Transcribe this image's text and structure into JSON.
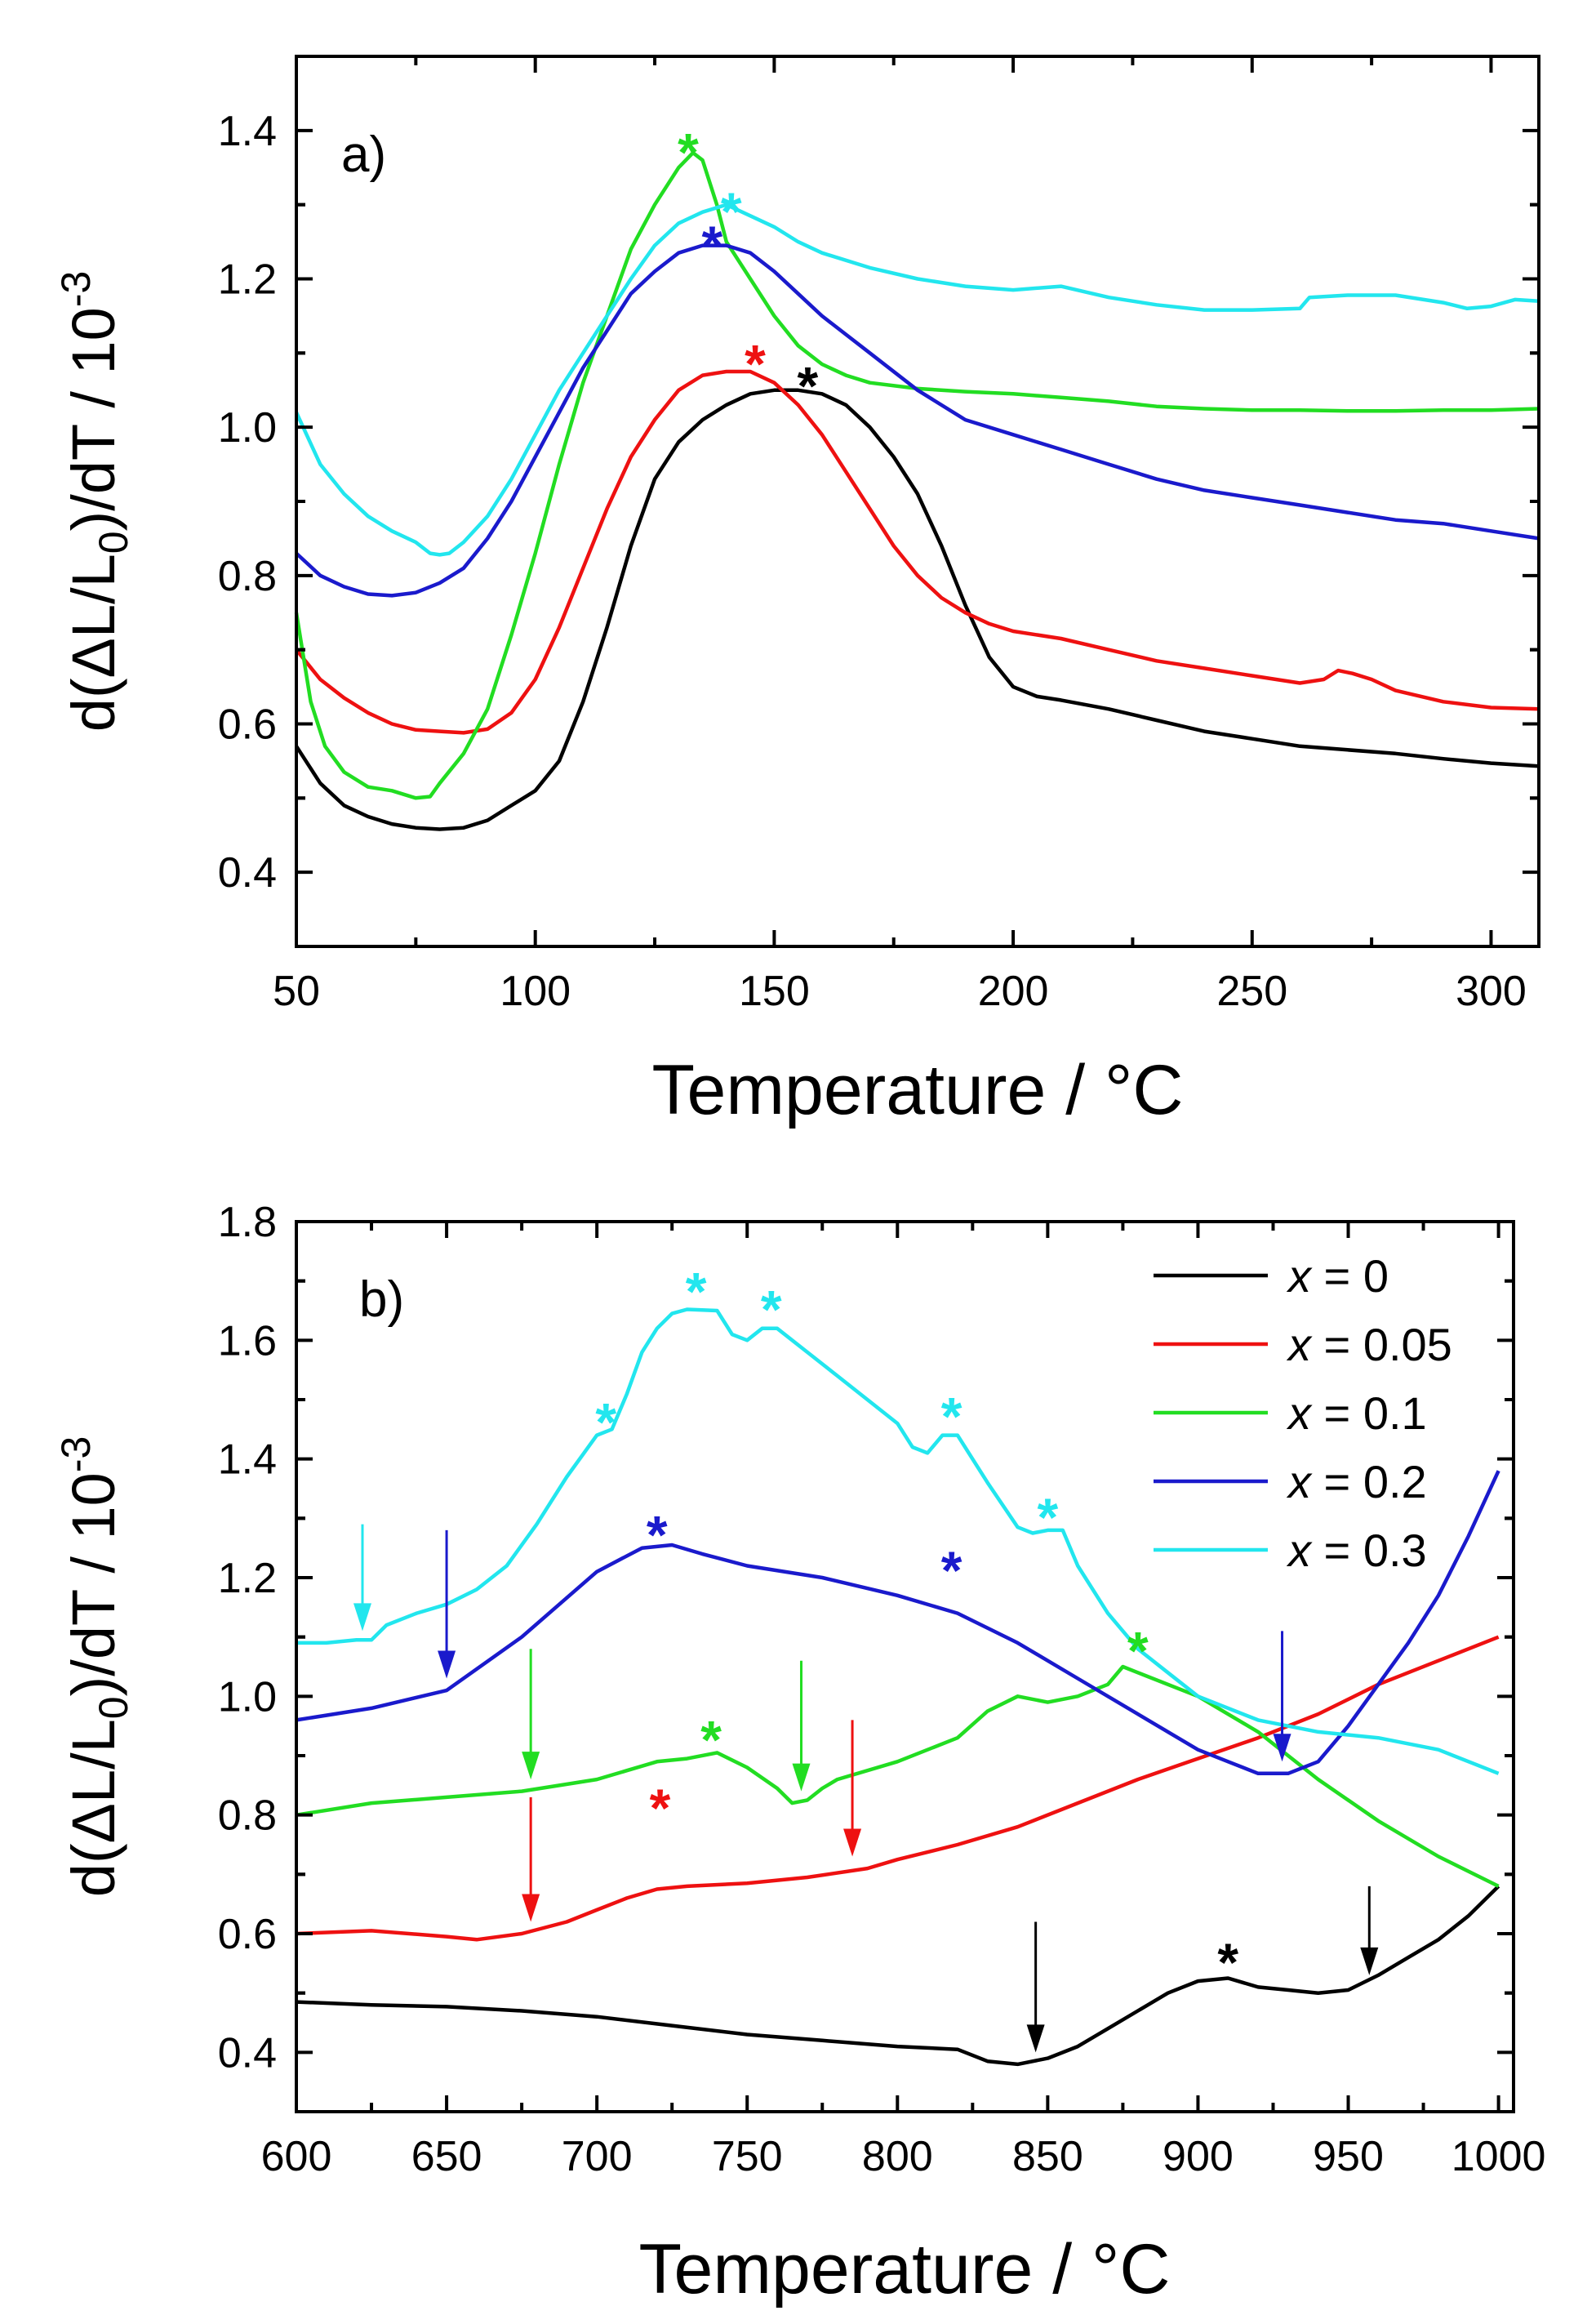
{
  "colors": {
    "x0": "#000000",
    "x005": "#ee1111",
    "x01": "#22dd22",
    "x02": "#1a1acc",
    "x03": "#22e6ee"
  },
  "legend": [
    {
      "key": "x0",
      "prefix": "x",
      "rest": " = 0"
    },
    {
      "key": "x005",
      "prefix": "x",
      "rest": " = 0.05"
    },
    {
      "key": "x01",
      "prefix": "x",
      "rest": " = 0.1"
    },
    {
      "key": "x02",
      "prefix": "x",
      "rest": " = 0.2"
    },
    {
      "key": "x03",
      "prefix": "x",
      "rest": " = 0.3"
    }
  ],
  "chart_data": [
    {
      "type": "line",
      "panel_label": "a)",
      "xlabel": "Temperature / °C",
      "ylabel": {
        "main": "d(ΔL/L",
        "sub": "0",
        "mid": ")/dT / 10",
        "sup": "-3"
      },
      "xlim": [
        50,
        310
      ],
      "ylim": [
        0.3,
        1.5
      ],
      "xticks": [
        50,
        100,
        150,
        200,
        250,
        300
      ],
      "yticks": [
        0.4,
        0.6,
        0.8,
        1.0,
        1.2,
        1.4
      ],
      "xtick_labels": [
        "50",
        "100",
        "150",
        "200",
        "250",
        "300"
      ],
      "ytick_labels": [
        "0.4",
        "0.6",
        "0.8",
        "1.0",
        "1.2",
        "1.4"
      ],
      "series": [
        {
          "name": "x = 0",
          "key": "x0",
          "x": [
            50,
            55,
            60,
            65,
            70,
            75,
            80,
            85,
            90,
            95,
            100,
            105,
            110,
            115,
            120,
            125,
            130,
            135,
            140,
            145,
            150,
            155,
            160,
            165,
            170,
            175,
            180,
            185,
            190,
            195,
            200,
            205,
            210,
            220,
            230,
            240,
            250,
            260,
            270,
            280,
            290,
            300,
            310
          ],
          "y": [
            0.57,
            0.52,
            0.49,
            0.475,
            0.465,
            0.46,
            0.458,
            0.46,
            0.47,
            0.49,
            0.51,
            0.55,
            0.63,
            0.73,
            0.84,
            0.93,
            0.98,
            1.01,
            1.03,
            1.045,
            1.05,
            1.05,
            1.045,
            1.03,
            1.0,
            0.96,
            0.91,
            0.84,
            0.76,
            0.69,
            0.65,
            0.637,
            0.632,
            0.62,
            0.605,
            0.59,
            0.58,
            0.57,
            0.565,
            0.56,
            0.553,
            0.547,
            0.543
          ]
        },
        {
          "name": "x = 0.05",
          "key": "x005",
          "x": [
            50,
            55,
            60,
            65,
            70,
            75,
            80,
            85,
            90,
            95,
            100,
            105,
            110,
            115,
            120,
            125,
            130,
            135,
            140,
            145,
            150,
            155,
            160,
            165,
            170,
            175,
            180,
            185,
            190,
            195,
            200,
            210,
            220,
            230,
            240,
            250,
            260,
            265,
            268,
            271,
            275,
            280,
            290,
            300,
            310
          ],
          "y": [
            0.7,
            0.66,
            0.635,
            0.615,
            0.6,
            0.592,
            0.59,
            0.588,
            0.593,
            0.615,
            0.66,
            0.73,
            0.81,
            0.89,
            0.96,
            1.01,
            1.05,
            1.07,
            1.075,
            1.075,
            1.06,
            1.03,
            0.99,
            0.94,
            0.89,
            0.84,
            0.8,
            0.77,
            0.75,
            0.735,
            0.725,
            0.715,
            0.7,
            0.685,
            0.675,
            0.665,
            0.655,
            0.66,
            0.672,
            0.668,
            0.66,
            0.645,
            0.63,
            0.622,
            0.62
          ]
        },
        {
          "name": "x = 0.1",
          "key": "x01",
          "x": [
            50,
            53,
            56,
            60,
            65,
            70,
            75,
            78,
            80,
            85,
            90,
            95,
            100,
            105,
            110,
            115,
            120,
            125,
            130,
            133,
            135,
            138,
            140,
            145,
            150,
            155,
            160,
            165,
            170,
            180,
            190,
            200,
            210,
            220,
            230,
            240,
            250,
            260,
            270,
            280,
            290,
            300,
            310
          ],
          "y": [
            0.75,
            0.63,
            0.57,
            0.535,
            0.515,
            0.51,
            0.5,
            0.502,
            0.52,
            0.56,
            0.62,
            0.72,
            0.83,
            0.95,
            1.06,
            1.15,
            1.24,
            1.3,
            1.35,
            1.37,
            1.36,
            1.3,
            1.25,
            1.2,
            1.15,
            1.11,
            1.085,
            1.07,
            1.06,
            1.052,
            1.048,
            1.045,
            1.04,
            1.035,
            1.028,
            1.025,
            1.023,
            1.023,
            1.022,
            1.022,
            1.023,
            1.023,
            1.025
          ]
        },
        {
          "name": "x = 0.2",
          "key": "x02",
          "x": [
            50,
            55,
            60,
            65,
            70,
            75,
            80,
            85,
            90,
            95,
            100,
            105,
            110,
            115,
            120,
            125,
            130,
            135,
            140,
            145,
            150,
            155,
            160,
            170,
            180,
            190,
            200,
            210,
            220,
            230,
            240,
            250,
            260,
            270,
            280,
            290,
            300,
            310
          ],
          "y": [
            0.83,
            0.8,
            0.785,
            0.775,
            0.773,
            0.777,
            0.79,
            0.81,
            0.85,
            0.9,
            0.96,
            1.02,
            1.08,
            1.13,
            1.18,
            1.21,
            1.235,
            1.245,
            1.245,
            1.235,
            1.21,
            1.18,
            1.15,
            1.1,
            1.05,
            1.01,
            0.99,
            0.97,
            0.95,
            0.93,
            0.915,
            0.905,
            0.895,
            0.885,
            0.875,
            0.87,
            0.86,
            0.85
          ]
        },
        {
          "name": "x = 0.3",
          "key": "x03",
          "x": [
            50,
            55,
            60,
            65,
            70,
            75,
            78,
            80,
            82,
            85,
            90,
            95,
            100,
            105,
            110,
            115,
            120,
            125,
            130,
            135,
            140,
            145,
            150,
            155,
            160,
            170,
            180,
            190,
            200,
            210,
            220,
            230,
            240,
            250,
            260,
            262,
            270,
            280,
            290,
            295,
            300,
            305,
            310
          ],
          "y": [
            1.02,
            0.95,
            0.91,
            0.88,
            0.86,
            0.845,
            0.83,
            0.828,
            0.83,
            0.845,
            0.88,
            0.93,
            0.99,
            1.05,
            1.1,
            1.15,
            1.2,
            1.245,
            1.275,
            1.29,
            1.3,
            1.285,
            1.27,
            1.25,
            1.235,
            1.215,
            1.2,
            1.19,
            1.185,
            1.19,
            1.175,
            1.165,
            1.158,
            1.158,
            1.16,
            1.175,
            1.178,
            1.178,
            1.168,
            1.16,
            1.163,
            1.172,
            1.17
          ]
        }
      ],
      "annotations": [
        {
          "type": "star",
          "key": "x01",
          "x": 132,
          "y": 1.385
        },
        {
          "type": "star",
          "key": "x03",
          "x": 141,
          "y": 1.305
        },
        {
          "type": "star",
          "key": "x02",
          "x": 137,
          "y": 1.26
        },
        {
          "type": "star",
          "key": "x005",
          "x": 146,
          "y": 1.1
        },
        {
          "type": "star",
          "key": "x0",
          "x": 157,
          "y": 1.07
        }
      ]
    },
    {
      "type": "line",
      "panel_label": "b)",
      "xlabel": "Temperature / °C",
      "ylabel": {
        "main": "d(ΔL/L",
        "sub": "0",
        "mid": ")/dT / 10",
        "sup": "-3"
      },
      "xlim": [
        600,
        1005
      ],
      "ylim": [
        0.3,
        1.8
      ],
      "xticks": [
        600,
        650,
        700,
        750,
        800,
        850,
        900,
        950,
        1000
      ],
      "yticks": [
        0.4,
        0.6,
        0.8,
        1.0,
        1.2,
        1.4,
        1.6,
        1.8
      ],
      "xtick_labels": [
        "600",
        "650",
        "700",
        "750",
        "800",
        "850",
        "900",
        "950",
        "1000"
      ],
      "ytick_labels": [
        "0.4",
        "0.6",
        "0.8",
        "1.0",
        "1.2",
        "1.4",
        "1.6",
        "1.8"
      ],
      "series": [
        {
          "name": "x = 0",
          "key": "x0",
          "x": [
            600,
            625,
            650,
            675,
            700,
            725,
            750,
            775,
            800,
            820,
            830,
            840,
            850,
            860,
            870,
            880,
            890,
            900,
            910,
            920,
            930,
            940,
            950,
            960,
            970,
            980,
            990,
            1000
          ],
          "y": [
            0.485,
            0.48,
            0.477,
            0.47,
            0.46,
            0.445,
            0.43,
            0.42,
            0.41,
            0.405,
            0.385,
            0.38,
            0.39,
            0.41,
            0.44,
            0.47,
            0.5,
            0.52,
            0.525,
            0.51,
            0.505,
            0.5,
            0.505,
            0.53,
            0.56,
            0.59,
            0.63,
            0.68
          ]
        },
        {
          "name": "x = 0.05",
          "key": "x005",
          "x": [
            600,
            625,
            650,
            660,
            675,
            690,
            700,
            710,
            720,
            730,
            750,
            770,
            790,
            800,
            820,
            840,
            860,
            880,
            900,
            920,
            940,
            960,
            980,
            1000
          ],
          "y": [
            0.6,
            0.605,
            0.595,
            0.59,
            0.6,
            0.62,
            0.64,
            0.66,
            0.675,
            0.68,
            0.685,
            0.695,
            0.71,
            0.725,
            0.75,
            0.78,
            0.82,
            0.86,
            0.895,
            0.93,
            0.97,
            1.02,
            1.06,
            1.1
          ]
        },
        {
          "name": "x = 0.1",
          "key": "x01",
          "x": [
            600,
            625,
            650,
            675,
            700,
            710,
            720,
            730,
            740,
            750,
            760,
            765,
            770,
            775,
            780,
            800,
            820,
            830,
            840,
            850,
            860,
            870,
            875,
            880,
            900,
            920,
            940,
            960,
            980,
            1000
          ],
          "y": [
            0.8,
            0.82,
            0.83,
            0.84,
            0.86,
            0.875,
            0.89,
            0.895,
            0.905,
            0.88,
            0.845,
            0.82,
            0.825,
            0.845,
            0.86,
            0.89,
            0.93,
            0.975,
            1.0,
            0.99,
            1.0,
            1.02,
            1.05,
            1.04,
            1.0,
            0.94,
            0.86,
            0.79,
            0.73,
            0.68
          ]
        },
        {
          "name": "x = 0.2",
          "key": "x02",
          "x": [
            600,
            625,
            650,
            675,
            700,
            715,
            725,
            735,
            750,
            775,
            800,
            820,
            840,
            860,
            880,
            900,
            910,
            920,
            930,
            940,
            950,
            960,
            970,
            980,
            990,
            1000
          ],
          "y": [
            0.96,
            0.98,
            1.01,
            1.1,
            1.21,
            1.25,
            1.255,
            1.24,
            1.22,
            1.2,
            1.17,
            1.14,
            1.09,
            1.03,
            0.97,
            0.91,
            0.89,
            0.87,
            0.87,
            0.89,
            0.95,
            1.02,
            1.09,
            1.17,
            1.27,
            1.38
          ]
        },
        {
          "name": "x = 0.3",
          "key": "x03",
          "x": [
            600,
            610,
            620,
            625,
            630,
            640,
            650,
            660,
            670,
            680,
            690,
            700,
            705,
            710,
            715,
            720,
            725,
            730,
            740,
            745,
            750,
            755,
            760,
            770,
            780,
            790,
            800,
            805,
            810,
            815,
            820,
            830,
            840,
            845,
            850,
            855,
            860,
            870,
            880,
            890,
            900,
            920,
            940,
            960,
            980,
            1000
          ],
          "y": [
            1.09,
            1.09,
            1.095,
            1.095,
            1.12,
            1.14,
            1.155,
            1.18,
            1.22,
            1.29,
            1.37,
            1.44,
            1.45,
            1.51,
            1.58,
            1.62,
            1.645,
            1.652,
            1.65,
            1.61,
            1.6,
            1.62,
            1.62,
            1.58,
            1.54,
            1.5,
            1.46,
            1.42,
            1.41,
            1.44,
            1.44,
            1.36,
            1.285,
            1.275,
            1.28,
            1.28,
            1.22,
            1.14,
            1.08,
            1.04,
            1.0,
            0.96,
            0.94,
            0.93,
            0.91,
            0.87
          ]
        }
      ],
      "annotations": [
        {
          "type": "star",
          "key": "x03",
          "x": 703,
          "y": 1.48
        },
        {
          "type": "star",
          "key": "x03",
          "x": 733,
          "y": 1.7
        },
        {
          "type": "star",
          "key": "x03",
          "x": 758,
          "y": 1.67
        },
        {
          "type": "star",
          "key": "x03",
          "x": 818,
          "y": 1.49
        },
        {
          "type": "star",
          "key": "x03",
          "x": 850,
          "y": 1.32
        },
        {
          "type": "star",
          "key": "x02",
          "x": 720,
          "y": 1.29
        },
        {
          "type": "star",
          "key": "x02",
          "x": 818,
          "y": 1.23
        },
        {
          "type": "star",
          "key": "x01",
          "x": 738,
          "y": 0.945
        },
        {
          "type": "star",
          "key": "x01",
          "x": 880,
          "y": 1.095
        },
        {
          "type": "star",
          "key": "x005",
          "x": 721,
          "y": 0.83
        },
        {
          "type": "star",
          "key": "x0",
          "x": 910,
          "y": 0.57
        },
        {
          "type": "arrow",
          "key": "x03",
          "x": 622,
          "y_top": 1.29,
          "y_tip": 1.11
        },
        {
          "type": "arrow",
          "key": "x02",
          "x": 650,
          "y_top": 1.28,
          "y_tip": 1.03
        },
        {
          "type": "arrow",
          "key": "x01",
          "x": 678,
          "y_top": 1.08,
          "y_tip": 0.86
        },
        {
          "type": "arrow",
          "key": "x01",
          "x": 768,
          "y_top": 1.06,
          "y_tip": 0.84
        },
        {
          "type": "arrow",
          "key": "x005",
          "x": 678,
          "y_top": 0.83,
          "y_tip": 0.62
        },
        {
          "type": "arrow",
          "key": "x005",
          "x": 785,
          "y_top": 0.96,
          "y_tip": 0.73
        },
        {
          "type": "arrow",
          "key": "x02",
          "x": 928,
          "y_top": 1.11,
          "y_tip": 0.89
        },
        {
          "type": "arrow",
          "key": "x0",
          "x": 846,
          "y_top": 0.62,
          "y_tip": 0.4
        },
        {
          "type": "arrow",
          "key": "x0",
          "x": 957,
          "y_top": 0.68,
          "y_tip": 0.53
        }
      ]
    }
  ]
}
